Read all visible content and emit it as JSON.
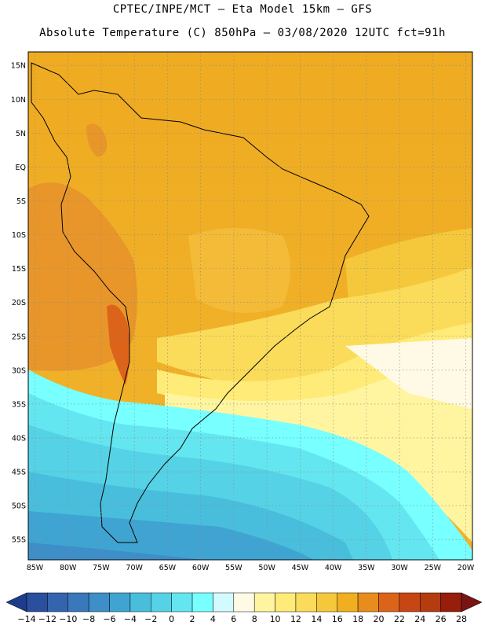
{
  "header": {
    "line1": "CPTEC/INPE/MCT –  Eta Model 15km – GFS",
    "line2": "Absolute Temperature (C) 850hPa – 03/08/2020 12UTC fct=91h"
  },
  "map": {
    "lat_labels": [
      "15N",
      "10N",
      "5N",
      "EQ",
      "5S",
      "10S",
      "15S",
      "20S",
      "25S",
      "30S",
      "35S",
      "40S",
      "45S",
      "50S",
      "55S"
    ],
    "lon_labels": [
      "85W",
      "80W",
      "75W",
      "70W",
      "65W",
      "60W",
      "55W",
      "50W",
      "45W",
      "40W",
      "35W",
      "30W",
      "25W",
      "20W"
    ]
  },
  "colorbar": {
    "labels": [
      "-14",
      "-12",
      "-10",
      "-8",
      "-6",
      "-4",
      "-2",
      "0",
      "2",
      "4",
      "6",
      "8",
      "10",
      "12",
      "14",
      "16",
      "18",
      "20",
      "22",
      "24",
      "26",
      "28"
    ],
    "colors": [
      "#1e3c8c",
      "#2a4f9e",
      "#3464ae",
      "#3a78bc",
      "#3e8ec8",
      "#3fa4d2",
      "#48bedc",
      "#55d2e6",
      "#64e6f0",
      "#78ffff",
      "#d2faff",
      "#fffae6",
      "#fff5a0",
      "#ffeb78",
      "#fadc5a",
      "#f5c83c",
      "#f0af1e",
      "#e88c1e",
      "#dc641a",
      "#c84614",
      "#b43c0f",
      "#961e0a",
      "#781414"
    ]
  }
}
